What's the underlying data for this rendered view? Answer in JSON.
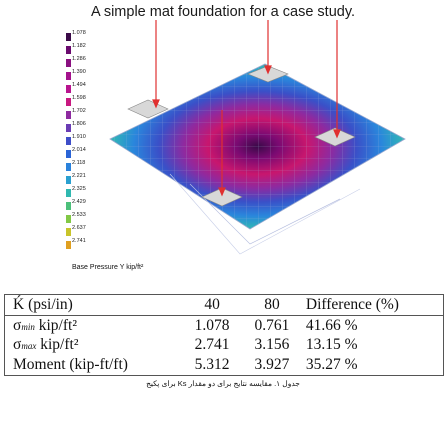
{
  "title": "A simple mat foundation for a case study.",
  "legend": {
    "items": [
      {
        "label": "1.078",
        "color": "#3a0a48"
      },
      {
        "label": "1.182",
        "color": "#6a0a6e"
      },
      {
        "label": "1.286",
        "color": "#8a1080"
      },
      {
        "label": "1.390",
        "color": "#a4128c"
      },
      {
        "label": "1.494",
        "color": "#b8148e"
      },
      {
        "label": "1.598",
        "color": "#c81880"
      },
      {
        "label": "1.702",
        "color": "#8e2aa0"
      },
      {
        "label": "1.806",
        "color": "#6a3cb4"
      },
      {
        "label": "1.910",
        "color": "#3e4ec8"
      },
      {
        "label": "2.014",
        "color": "#2a64d6"
      },
      {
        "label": "2.118",
        "color": "#2a82dc"
      },
      {
        "label": "2.221",
        "color": "#2aa0d0"
      },
      {
        "label": "2.325",
        "color": "#30b8b0"
      },
      {
        "label": "2.429",
        "color": "#4cc07a"
      },
      {
        "label": "2.533",
        "color": "#82c846"
      },
      {
        "label": "2.637",
        "color": "#c8c42a"
      },
      {
        "label": "2.741",
        "color": "#e0a020"
      }
    ],
    "caption": "Base Pressure Y  kip/ft²"
  },
  "table": {
    "header": {
      "c0": "Ḱ (psi/in)",
      "c1": "40",
      "c2": "80",
      "c3": "Difference (%)"
    },
    "rows": [
      {
        "sym": "σ",
        "subs": "min",
        "unit": " kip/ft²",
        "c1": "1.078",
        "c2": "0.761",
        "c3": "41.66 %"
      },
      {
        "sym": "σ",
        "subs": "max",
        "unit": " kip/ft²",
        "c1": "2.741",
        "c2": "3.156",
        "c3": "13.15 %"
      },
      {
        "sym": "",
        "subs": "",
        "unit": "Moment (kip-ft/ft)",
        "c1": "5.312",
        "c2": "3.927",
        "c3": "35.27 %"
      }
    ]
  },
  "caption": "جدول ۱. مقایسه نتایج برای دو مقدار Ks برای پکیج"
}
